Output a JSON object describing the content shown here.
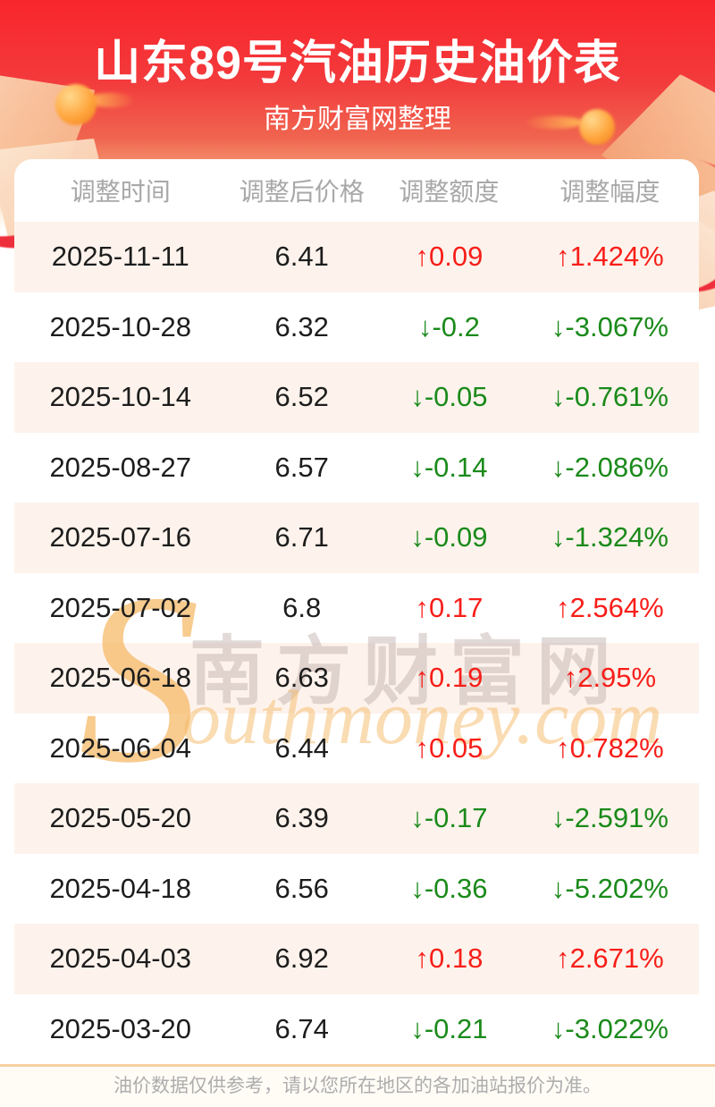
{
  "page": {
    "title": "山东89号汽油历史油价表",
    "subtitle": "南方财富网整理"
  },
  "table": {
    "columns": [
      "调整时间",
      "调整后价格",
      "调整额度",
      "调整幅度"
    ],
    "rows": [
      {
        "date": "2025-11-11",
        "price": "6.41",
        "change": "0.09",
        "percent": "1.424%",
        "direction": "up"
      },
      {
        "date": "2025-10-28",
        "price": "6.32",
        "change": "-0.2",
        "percent": "-3.067%",
        "direction": "down"
      },
      {
        "date": "2025-10-14",
        "price": "6.52",
        "change": "-0.05",
        "percent": "-0.761%",
        "direction": "down"
      },
      {
        "date": "2025-08-27",
        "price": "6.57",
        "change": "-0.14",
        "percent": "-2.086%",
        "direction": "down"
      },
      {
        "date": "2025-07-16",
        "price": "6.71",
        "change": "-0.09",
        "percent": "-1.324%",
        "direction": "down"
      },
      {
        "date": "2025-07-02",
        "price": "6.8",
        "change": "0.17",
        "percent": "2.564%",
        "direction": "up"
      },
      {
        "date": "2025-06-18",
        "price": "6.63",
        "change": "0.19",
        "percent": "2.95%",
        "direction": "up"
      },
      {
        "date": "2025-06-04",
        "price": "6.44",
        "change": "0.05",
        "percent": "0.782%",
        "direction": "up"
      },
      {
        "date": "2025-05-20",
        "price": "6.39",
        "change": "-0.17",
        "percent": "-2.591%",
        "direction": "down"
      },
      {
        "date": "2025-04-18",
        "price": "6.56",
        "change": "-0.36",
        "percent": "-5.202%",
        "direction": "down"
      },
      {
        "date": "2025-04-03",
        "price": "6.92",
        "change": "0.18",
        "percent": "2.671%",
        "direction": "up"
      },
      {
        "date": "2025-03-20",
        "price": "6.74",
        "change": "-0.21",
        "percent": "-3.022%",
        "direction": "down"
      }
    ]
  },
  "chart_data": {
    "type": "table",
    "title": "山东89号汽油历史油价表",
    "columns": [
      "调整时间",
      "调整后价格",
      "调整额度",
      "调整幅度"
    ],
    "dates": [
      "2025-11-11",
      "2025-10-28",
      "2025-10-14",
      "2025-08-27",
      "2025-07-16",
      "2025-07-02",
      "2025-06-18",
      "2025-06-04",
      "2025-05-20",
      "2025-04-18",
      "2025-04-03",
      "2025-03-20"
    ],
    "prices": [
      6.41,
      6.32,
      6.52,
      6.57,
      6.71,
      6.8,
      6.63,
      6.44,
      6.39,
      6.56,
      6.92,
      6.74
    ],
    "changes": [
      0.09,
      -0.2,
      -0.05,
      -0.14,
      -0.09,
      0.17,
      0.19,
      0.05,
      -0.17,
      -0.36,
      0.18,
      -0.21
    ],
    "change_percents": [
      1.424,
      -3.067,
      -0.761,
      -2.086,
      -1.324,
      2.564,
      2.95,
      0.782,
      -2.591,
      -5.202,
      2.671,
      -3.022
    ]
  },
  "icons": {
    "arrow_up": "↑",
    "arrow_down": "↓"
  },
  "watermark": {
    "initial": "S",
    "brand_cn": "南方财富网",
    "brand_en": "outhmoney.com"
  },
  "footer": {
    "note": "油价数据仅供参考，请以您所在地区的各加油站报价为准。"
  },
  "colors": {
    "up_red": "#f81e19",
    "down_green": "#1a8a1a",
    "header_red_top": "#f8262c",
    "header_peach_bottom": "#f8c9a2",
    "row_alt_bg": "#fdf3ec",
    "footer_divider": "#f8d09f",
    "header_text_gray": "#a8a8a8"
  }
}
